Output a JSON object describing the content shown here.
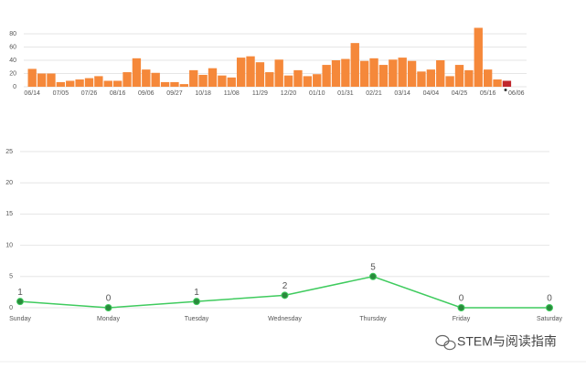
{
  "chart_data": [
    {
      "type": "bar",
      "categories": [
        "06/14",
        null,
        null,
        "07/05",
        null,
        null,
        "07/26",
        null,
        null,
        "08/16",
        null,
        null,
        "09/06",
        null,
        null,
        "09/27",
        null,
        null,
        "10/18",
        null,
        null,
        "11/08",
        null,
        null,
        "11/29",
        null,
        null,
        "12/20",
        null,
        null,
        "01/10",
        null,
        null,
        "01/31",
        null,
        null,
        "02/21",
        null,
        null,
        "03/14",
        null,
        null,
        "04/04",
        null,
        null,
        "04/25",
        null,
        null,
        "05/16",
        null,
        null,
        "06/06"
      ],
      "values": [
        27,
        20,
        20,
        7,
        9,
        11,
        13,
        16,
        9,
        9,
        22,
        43,
        26,
        21,
        7,
        7,
        4,
        25,
        18,
        28,
        17,
        14,
        44,
        46,
        37,
        22,
        41,
        17,
        25,
        16,
        19,
        33,
        40,
        42,
        66,
        39,
        43,
        33,
        41,
        44,
        39,
        23,
        26,
        40,
        16,
        33,
        25,
        89,
        26,
        11,
        9,
        null
      ],
      "color": "#f5883a",
      "highlight": {
        "index": 50,
        "color": "#c0282d"
      },
      "ylim": [
        0,
        80
      ],
      "yticks": [
        0,
        20,
        40,
        60,
        80
      ],
      "grid": true
    },
    {
      "type": "line",
      "categories": [
        "Sunday",
        "Monday",
        "Tuesday",
        "Wednesday",
        "Thursday",
        "Friday",
        "Saturday"
      ],
      "values": [
        1,
        0,
        1,
        2,
        5,
        0,
        0
      ],
      "color": "#3fcb5e",
      "marker_color": "#2a8a3c",
      "ylim": [
        0,
        25
      ],
      "yticks": [
        0,
        5,
        10,
        15,
        20,
        25
      ],
      "grid": true
    }
  ],
  "watermark": "STEM与阅读指南"
}
